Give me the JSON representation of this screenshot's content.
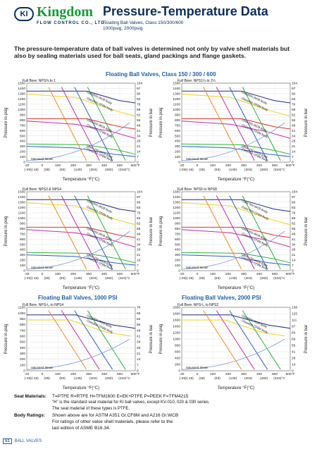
{
  "header": {
    "logo": "KI",
    "brand": "Kingdom",
    "brand_sub": "FLOW CONTROL CO., LTD.",
    "title": "Pressure-Temperature Data",
    "subtitle_line1": "Floating Ball Valves, Class 150/300/600",
    "subtitle_line2": "1000psig, 2000psig"
  },
  "intro": "The pressure-temperature data of ball valves is determined not only by valve shell materials but also by sealing materials used for ball seats, gland packings and flange gaskets.",
  "sections": {
    "class": "Floating Ball Valves, Class 150 / 300 / 600",
    "psi1000": "Floating Ball Valves, 1000 PSI",
    "psi2000": "Floating Ball Valves, 2000 PSI"
  },
  "common": {
    "ylabel_left": "Pressure in psig",
    "ylabel_right": "Pressure in bar",
    "xlabel": "Temperature °F(°C)",
    "fullbore": "Full Bore:",
    "sat_steam": "Saturated Steam",
    "x_ticks": [
      "-20",
      "0",
      "100",
      "200",
      "300",
      "400",
      "500",
      "600°F"
    ],
    "x_ticks_c": [
      "(-29)(-18)",
      "(38)",
      "(93)",
      "(149)",
      "(204)",
      "(260)",
      "(316)°C"
    ]
  },
  "charts": [
    {
      "id": "c1",
      "size": "NPS⅜ to 1",
      "y_ticks": [
        "1500",
        "1400",
        "1300",
        "1200",
        "1100",
        "1000",
        "900",
        "800",
        "700",
        "600",
        "500",
        "400",
        "300",
        "200",
        "100",
        "0"
      ],
      "bar_ticks": [
        "104",
        "97",
        "90",
        "83",
        "76",
        "69",
        "62",
        "55",
        "48",
        "41",
        "34",
        "28",
        "21",
        "14",
        "7",
        "0"
      ],
      "labels": [
        "Class600 WCB Body",
        "Class600 CF8M Body",
        "Class300 WCB Body",
        "Class300 CF8M Body",
        "Class 150 WCB Body",
        "Class150 CF8M Body"
      ]
    },
    {
      "id": "c2",
      "size": "NPS1¼ to 2½",
      "y_ticks": [
        "1500",
        "1400",
        "1300",
        "1200",
        "1100",
        "1000",
        "900",
        "800",
        "700",
        "600",
        "500",
        "400",
        "300",
        "200",
        "100",
        "0"
      ],
      "bar_ticks": [
        "104",
        "97",
        "90",
        "83",
        "76",
        "69",
        "62",
        "55",
        "48",
        "41",
        "34",
        "28",
        "21",
        "14",
        "7",
        "0"
      ],
      "labels": [
        "Class600 WCB Body",
        "Class600 CF8M Body",
        "Class300 WCB Body",
        "Class300 CF8M Body",
        "Class 150 WCB Body",
        "Class150 CF8M Body"
      ]
    },
    {
      "id": "c3",
      "size": "NPS3 & NPS4",
      "y_ticks": [
        "1500",
        "1400",
        "1300",
        "1200",
        "1100",
        "1000",
        "900",
        "800",
        "700",
        "600",
        "500",
        "400",
        "300",
        "200",
        "100",
        "0"
      ],
      "bar_ticks": [
        "104",
        "97",
        "90",
        "83",
        "76",
        "69",
        "62",
        "55",
        "48",
        "41",
        "34",
        "28",
        "21",
        "14",
        "7",
        "0"
      ],
      "labels": [
        "Class600 WCB Body",
        "Class600 CF8M Body",
        "Class300 WCB Body",
        "Class300 CF8M Body",
        "Class 150 WCB Body",
        "Class150 CF8M Body"
      ]
    },
    {
      "id": "c4",
      "size": "NPS5 to NPS8",
      "y_ticks": [
        "1500",
        "1400",
        "1300",
        "1200",
        "1100",
        "1000",
        "900",
        "800",
        "700",
        "600",
        "500",
        "400",
        "300",
        "200",
        "100",
        "0"
      ],
      "bar_ticks": [
        "104",
        "97",
        "90",
        "83",
        "76",
        "69",
        "62",
        "55",
        "48",
        "41",
        "34",
        "28",
        "21",
        "14",
        "7",
        "0"
      ],
      "labels": [
        "Class 600 WCB Body",
        "Class 600 CF8M Body",
        "Class300 WCB Body",
        "Class300 CF8M Body",
        "Class 150 WCB Body",
        "Class150 CF8M Body"
      ]
    },
    {
      "id": "c5",
      "size": "NPS¹/₄ to NPS4",
      "y_ticks": [
        "1100",
        "1000",
        "900",
        "800",
        "700",
        "600",
        "500",
        "400",
        "300",
        "200",
        "100",
        "0"
      ],
      "bar_ticks": [
        "76",
        "69",
        "62",
        "55",
        "48",
        "41",
        "34",
        "28",
        "21",
        "14",
        "7",
        "0"
      ],
      "labels": [
        "Class600 WCB Body",
        "Class600 CF8M Body"
      ]
    },
    {
      "id": "c6",
      "size": "NPS¹/₄ to NPS2",
      "y_ticks": [
        "2000",
        "1800",
        "1600",
        "1400",
        "1200",
        "1000",
        "800",
        "600",
        "400",
        "200",
        "0"
      ],
      "bar_ticks": [
        "138",
        "125",
        "111",
        "97",
        "83",
        "69",
        "55",
        "41",
        "28",
        "14",
        "0"
      ],
      "labels": [
        "Class600 WCB Body",
        "Class600 CF8M Body"
      ]
    }
  ],
  "notes": {
    "seat_label": "Seat Materials:",
    "seat_line1": "T=PTFE  R=RTFE  H=TFM1600  E=EK+PTFE  P=PEEK  F=TFM4215",
    "seat_line2": "\"H\" is the standard seat material for KI ball valves, except KV-010, 020 & 030 series.",
    "seat_line3": "The seat material of these types is PTFE.",
    "body_label": "Body Ratings:",
    "body_line1": "Shown above are for ASTM A351 Gr.CF8M and A216 Gr.WCB",
    "body_line2": "For ratings of other valve shell materials, please refer to the",
    "body_line3": "last edition of ASME B16.34."
  },
  "footer": {
    "page": "51",
    "label": "BALL VALVES"
  },
  "colors": {
    "navy": "#0a2f5c",
    "green": "#1a9a3c",
    "blue": "#1f5fa8",
    "curve_blue": "#2d5fd0",
    "curve_green": "#27b23a",
    "curve_magenta": "#c52aa8",
    "curve_yellow": "#f2d21a",
    "curve_red": "#e0342a",
    "curve_navy": "#1a2a80",
    "curve_orange": "#f08a20"
  }
}
